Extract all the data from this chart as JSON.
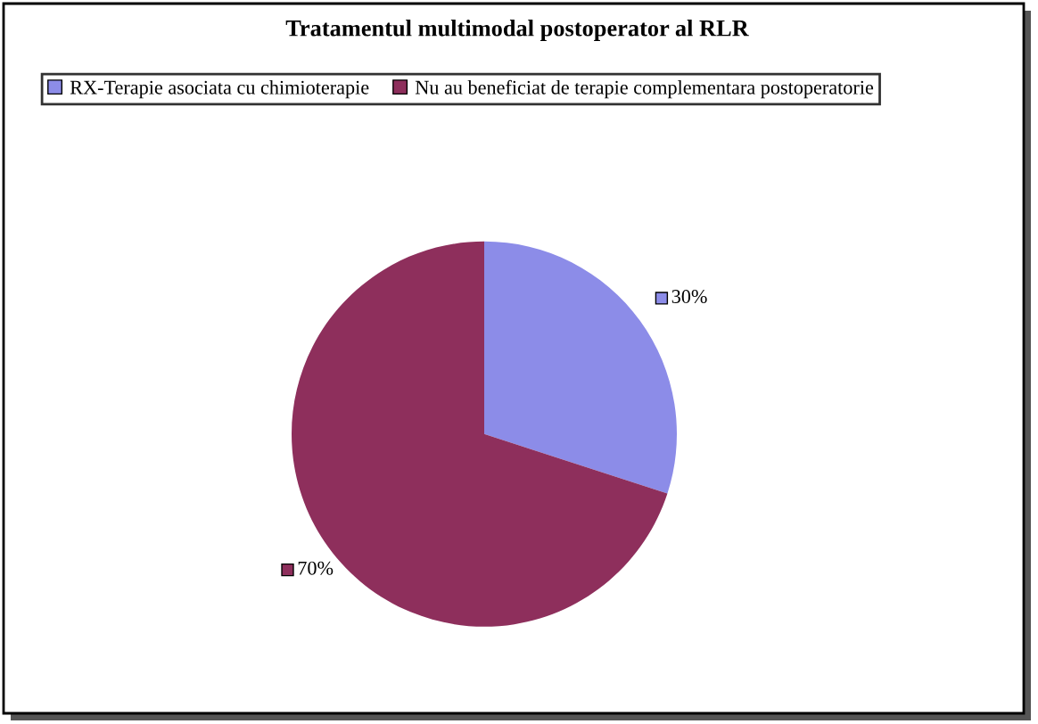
{
  "chart_data": {
    "type": "pie",
    "title": "Tratamentul multimodal postoperator al RLR",
    "categories": [
      "RX-Terapie asociata cu chimioterapie",
      "Nu au beneficiat de terapie complementara postoperatorie"
    ],
    "values": [
      30,
      70
    ],
    "colors": [
      "#8c8ce8",
      "#8e2f5c"
    ],
    "value_labels": [
      "30%",
      "70%"
    ],
    "legend": "top"
  }
}
